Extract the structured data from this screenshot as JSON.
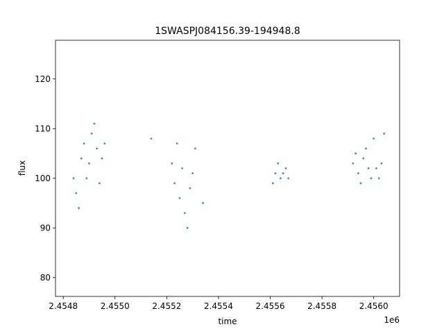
{
  "chart_data": {
    "type": "scatter",
    "title": "1SWASPJ084156.39-194948.8",
    "xlabel": "time",
    "ylabel": "flux",
    "x_offset_label": "1e6",
    "x_ticks": [
      {
        "value": 2.4548,
        "label": "2.4548"
      },
      {
        "value": 2.455,
        "label": "2.4550"
      },
      {
        "value": 2.4552,
        "label": "2.4552"
      },
      {
        "value": 2.4554,
        "label": "2.4554"
      },
      {
        "value": 2.4556,
        "label": "2.4556"
      },
      {
        "value": 2.4558,
        "label": "2.4558"
      },
      {
        "value": 2.456,
        "label": "2.4560"
      }
    ],
    "y_ticks": [
      {
        "value": 80,
        "label": "80"
      },
      {
        "value": 90,
        "label": "90"
      },
      {
        "value": 100,
        "label": "100"
      },
      {
        "value": 110,
        "label": "110"
      },
      {
        "value": 120,
        "label": "120"
      }
    ],
    "xlim": [
      2.45477,
      2.4561
    ],
    "ylim": [
      76.2,
      127.8
    ],
    "grid": false,
    "point_color": "#1f77b4",
    "series": [
      {
        "x": [
          2.45484,
          2.45485,
          2.45486,
          2.45487,
          2.45488,
          2.45489,
          2.4549,
          2.45491,
          2.45492,
          2.45493,
          2.45494,
          2.45495,
          2.45496,
          2.45514,
          2.45522,
          2.45523,
          2.45524,
          2.45525,
          2.45526,
          2.45527,
          2.45528,
          2.45529,
          2.4553,
          2.45531,
          2.45534,
          2.45561,
          2.45562,
          2.45563,
          2.45564,
          2.45565,
          2.45566,
          2.45567,
          2.45592,
          2.45593,
          2.45594,
          2.45595,
          2.45596,
          2.45597,
          2.45598,
          2.45599,
          2.456,
          2.45601,
          2.45602,
          2.45603,
          2.45604
        ],
        "y": [
          100,
          97,
          94,
          104,
          107,
          100,
          103,
          109,
          111,
          106,
          99,
          104,
          107,
          108,
          103,
          99,
          107,
          96,
          102,
          93,
          90,
          98,
          101,
          106,
          95,
          99,
          101,
          103,
          100,
          101,
          102,
          100,
          103,
          105,
          101,
          99,
          104,
          106,
          102,
          100,
          108,
          102,
          100,
          103,
          109
        ]
      }
    ]
  }
}
